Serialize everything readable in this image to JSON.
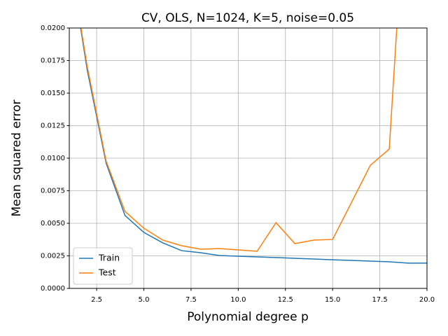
{
  "chart_data": {
    "type": "line",
    "title": "CV, OLS, N=1024, K=5, noise=0.05",
    "xlabel": "Polynomial degree p",
    "ylabel": "Mean squared error",
    "x": [
      1,
      2,
      3,
      4,
      5,
      6,
      7,
      8,
      9,
      10,
      11,
      12,
      13,
      14,
      15,
      16,
      17,
      18,
      19,
      20
    ],
    "series": [
      {
        "name": "Train",
        "color": "#1f77b4",
        "values": [
          0.026,
          0.01677,
          0.00962,
          0.0056,
          0.0043,
          0.0035,
          0.0029,
          0.00274,
          0.00253,
          0.00247,
          0.00242,
          0.00237,
          0.00231,
          0.00226,
          0.0022,
          0.00215,
          0.0021,
          0.00204,
          0.00194,
          0.00194
        ]
      },
      {
        "name": "Test",
        "color": "#ff7f0e",
        "values": [
          0.026,
          0.01704,
          0.00978,
          0.00591,
          0.00462,
          0.00371,
          0.00328,
          0.00301,
          0.00306,
          0.00296,
          0.00285,
          0.00505,
          0.00344,
          0.00371,
          0.00376,
          0.0066,
          0.00946,
          0.0107,
          0.034,
          null
        ]
      }
    ],
    "xlim": [
      1.05,
      20
    ],
    "ylim": [
      0,
      0.02
    ],
    "xticks": [
      {
        "value": 2.5,
        "label": "2.5"
      },
      {
        "value": 5,
        "label": "5.0"
      },
      {
        "value": 7.5,
        "label": "7.5"
      },
      {
        "value": 10,
        "label": "10.0"
      },
      {
        "value": 12.5,
        "label": "12.5"
      },
      {
        "value": 15,
        "label": "15.0"
      },
      {
        "value": 17.5,
        "label": "17.5"
      },
      {
        "value": 20,
        "label": "20.0"
      }
    ],
    "yticks": [
      {
        "value": 0,
        "label": "0.0000"
      },
      {
        "value": 0.0025,
        "label": "0.0025"
      },
      {
        "value": 0.005,
        "label": "0.0050"
      },
      {
        "value": 0.0075,
        "label": "0.0075"
      },
      {
        "value": 0.01,
        "label": "0.0100"
      },
      {
        "value": 0.0125,
        "label": "0.0125"
      },
      {
        "value": 0.015,
        "label": "0.0150"
      },
      {
        "value": 0.0175,
        "label": "0.0175"
      },
      {
        "value": 0.02,
        "label": "0.0200"
      }
    ],
    "grid": true,
    "legend": "lower left"
  }
}
